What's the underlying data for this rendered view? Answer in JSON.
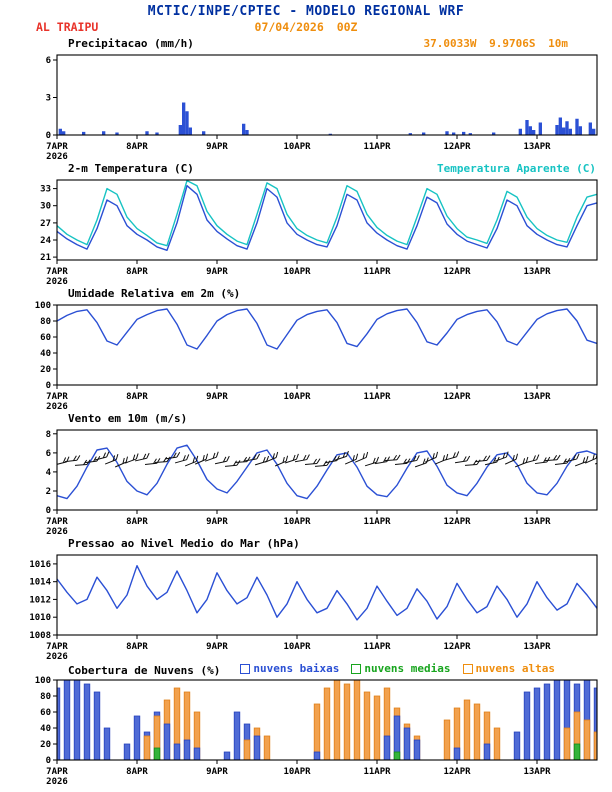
{
  "header": {
    "title": "MCTIC/INPE/CPTEC - MODELO REGIONAL WRF",
    "station": "AL TRAIPU",
    "run_datetime": "07/04/2026 00Z",
    "coordinates": "37.0033W 9.9706S 10m"
  },
  "colors": {
    "header_blue": "#0030a0",
    "station_red": "#e8332a",
    "orange": "#ef8e0e",
    "cyan": "#17c3c3",
    "line_blue": "#2b50d4",
    "green": "#18a51e",
    "black": "#000000"
  },
  "x_axis": {
    "range": [
      0,
      162
    ],
    "ticks": [
      {
        "h": 0,
        "label": "7APR",
        "year": "2026"
      },
      {
        "h": 24,
        "label": "8APR"
      },
      {
        "h": 48,
        "label": "9APR"
      },
      {
        "h": 72,
        "label": "10APR"
      },
      {
        "h": 96,
        "label": "11APR"
      },
      {
        "h": 120,
        "label": "12APR"
      },
      {
        "h": 144,
        "label": "13APR"
      }
    ]
  },
  "chart_data": [
    {
      "id": "precipitation",
      "title": "Precipitacao (mm/h)",
      "type": "bar-events",
      "unit": "mm/h",
      "ylim": [
        0,
        6.4
      ],
      "yticks": [
        0,
        3,
        6
      ],
      "color": "#2b50d4",
      "events": [
        [
          1,
          0.5
        ],
        [
          2,
          0.3
        ],
        [
          8,
          0.25
        ],
        [
          14,
          0.3
        ],
        [
          18,
          0.2
        ],
        [
          27,
          0.3
        ],
        [
          30,
          0.2
        ],
        [
          37,
          0.8
        ],
        [
          38,
          2.6
        ],
        [
          39,
          1.9
        ],
        [
          40,
          0.6
        ],
        [
          44,
          0.3
        ],
        [
          56,
          0.9
        ],
        [
          57,
          0.4
        ],
        [
          82,
          0.1
        ],
        [
          106,
          0.15
        ],
        [
          110,
          0.2
        ],
        [
          117,
          0.3
        ],
        [
          119,
          0.2
        ],
        [
          122,
          0.25
        ],
        [
          124,
          0.15
        ],
        [
          131,
          0.2
        ],
        [
          139,
          0.5
        ],
        [
          141,
          1.2
        ],
        [
          142,
          0.7
        ],
        [
          143,
          0.4
        ],
        [
          145,
          1.0
        ],
        [
          150,
          0.8
        ],
        [
          151,
          1.4
        ],
        [
          152,
          0.6
        ],
        [
          153,
          1.1
        ],
        [
          154,
          0.5
        ],
        [
          156,
          1.3
        ],
        [
          157,
          0.7
        ],
        [
          160,
          1.0
        ],
        [
          161,
          0.5
        ]
      ]
    },
    {
      "id": "temperature",
      "title": "2-m Temperatura (C)",
      "type": "line",
      "unit": "C",
      "ylim": [
        20.5,
        34.5
      ],
      "yticks": [
        21,
        24,
        27,
        30,
        33
      ],
      "series": [
        {
          "name": "2-m Temperatura (C)",
          "color": "#2b50d4",
          "start_h": 0,
          "step_h": 3,
          "values": [
            25.5,
            24.2,
            23.2,
            22.4,
            26.0,
            31.0,
            30.0,
            26.5,
            25.0,
            24.0,
            22.8,
            22.2,
            27.0,
            33.5,
            32.0,
            27.5,
            25.5,
            24.2,
            23.0,
            22.4,
            27.0,
            33.0,
            31.5,
            27.0,
            25.0,
            24.0,
            23.2,
            22.8,
            26.5,
            32.0,
            31.0,
            27.0,
            25.2,
            24.0,
            23.0,
            22.4,
            26.5,
            31.5,
            30.5,
            26.8,
            25.0,
            23.8,
            23.2,
            22.6,
            26.0,
            31.0,
            30.0,
            26.5,
            25.0,
            24.0,
            23.2,
            22.8,
            26.5,
            30.0,
            30.5
          ]
        },
        {
          "name": "Temperatura Aparente (C)",
          "color": "#17c3c3",
          "start_h": 0,
          "step_h": 3,
          "values": [
            26.5,
            25.0,
            24.0,
            23.2,
            27.5,
            33.0,
            32.0,
            28.0,
            26.0,
            24.8,
            23.5,
            23.0,
            28.5,
            34.4,
            33.5,
            29.0,
            26.5,
            25.0,
            23.8,
            23.2,
            28.5,
            34.0,
            33.0,
            28.5,
            26.0,
            24.8,
            24.0,
            23.5,
            28.0,
            33.5,
            32.5,
            28.5,
            26.2,
            24.8,
            23.8,
            23.2,
            28.0,
            33.0,
            32.0,
            28.2,
            26.0,
            24.5,
            24.0,
            23.4,
            27.5,
            32.5,
            31.5,
            28.0,
            26.0,
            24.8,
            24.0,
            23.6,
            28.0,
            31.5,
            32.0
          ]
        }
      ]
    },
    {
      "id": "humidity",
      "title": "Umidade Relativa em 2m (%)",
      "type": "line",
      "unit": "%",
      "ylim": [
        0,
        100
      ],
      "yticks": [
        0,
        20,
        40,
        60,
        80,
        100
      ],
      "series": [
        {
          "name": "Umidade Relativa em 2m",
          "color": "#2b50d4",
          "start_h": 0,
          "step_h": 3,
          "values": [
            80,
            87,
            92,
            94,
            78,
            55,
            50,
            66,
            82,
            88,
            93,
            95,
            76,
            50,
            45,
            62,
            80,
            88,
            93,
            95,
            77,
            50,
            45,
            63,
            81,
            88,
            92,
            94,
            78,
            52,
            48,
            64,
            82,
            89,
            93,
            95,
            78,
            54,
            50,
            65,
            82,
            88,
            92,
            94,
            79,
            55,
            50,
            66,
            82,
            89,
            93,
            95,
            80,
            56,
            52
          ]
        }
      ]
    },
    {
      "id": "wind",
      "title": "Vento em 10m (m/s)",
      "type": "line",
      "unit": "m/s",
      "ylim": [
        0,
        8.4
      ],
      "yticks": [
        0,
        2,
        4,
        6,
        8
      ],
      "series": [
        {
          "name": "Vento em 10m",
          "color": "#2b50d4",
          "start_h": 0,
          "step_h": 3,
          "values": [
            1.5,
            1.2,
            2.5,
            4.5,
            6.3,
            6.5,
            5.0,
            3.0,
            2.0,
            1.6,
            2.8,
            4.8,
            6.5,
            6.8,
            5.2,
            3.2,
            2.2,
            1.8,
            3.0,
            4.5,
            6.0,
            6.3,
            4.8,
            2.8,
            1.5,
            1.2,
            2.5,
            4.2,
            5.8,
            6.0,
            4.5,
            2.5,
            1.6,
            1.4,
            2.6,
            4.4,
            6.0,
            6.2,
            4.6,
            2.6,
            1.8,
            1.5,
            2.8,
            4.5,
            5.8,
            6.0,
            4.8,
            2.8,
            1.8,
            1.6,
            2.8,
            4.6,
            6.0,
            6.2,
            5.8
          ]
        }
      ],
      "barbs": {
        "step_h": 3,
        "color": "#101010",
        "y": [
          4.8,
          5.1,
          4.7,
          5.0,
          5.3,
          4.9,
          4.6,
          5.0,
          5.2,
          4.8,
          5.0,
          5.4,
          5.0,
          4.7,
          4.9,
          5.2,
          4.9,
          4.6,
          5.0,
          5.2,
          4.8,
          5.1,
          4.7,
          5.0,
          5.1,
          4.8,
          4.6,
          5.0,
          5.3,
          4.9,
          5.1,
          4.7,
          4.9,
          5.2,
          4.8,
          5.0,
          4.6,
          5.1,
          4.9,
          5.3,
          5.0,
          4.7,
          5.1,
          4.8,
          5.2,
          4.9,
          4.6,
          5.0,
          4.9,
          5.2,
          4.8,
          5.1,
          4.7,
          5.0,
          4.9
        ]
      }
    },
    {
      "id": "pressure",
      "title": "Pressao ao Nivel Medio do Mar (hPa)",
      "type": "line",
      "unit": "hPa",
      "ylim": [
        1008,
        1017
      ],
      "yticks": [
        1008,
        1010,
        1012,
        1014,
        1016
      ],
      "series": [
        {
          "name": "Pressao ao Nivel Medio do Mar",
          "color": "#2b50d4",
          "start_h": 0,
          "step_h": 3,
          "values": [
            1014.3,
            1012.8,
            1011.5,
            1012.0,
            1014.5,
            1013.0,
            1011.0,
            1012.5,
            1015.8,
            1013.5,
            1012.0,
            1012.8,
            1015.2,
            1013.0,
            1010.5,
            1012.0,
            1015.0,
            1013.0,
            1011.5,
            1012.2,
            1014.5,
            1012.5,
            1010.0,
            1011.5,
            1014.0,
            1012.0,
            1010.5,
            1011.0,
            1013.0,
            1011.5,
            1009.7,
            1011.0,
            1013.5,
            1011.8,
            1010.2,
            1011.0,
            1013.2,
            1011.8,
            1009.8,
            1011.2,
            1013.8,
            1012.0,
            1010.5,
            1011.2,
            1013.5,
            1012.0,
            1010.0,
            1011.5,
            1014.0,
            1012.2,
            1010.8,
            1011.5,
            1013.8,
            1012.5,
            1011.0
          ]
        }
      ]
    },
    {
      "id": "cloud_cover",
      "title": "Cobertura de Nuvens (%)",
      "type": "grouped-bars",
      "unit": "%",
      "ylim": [
        0,
        100
      ],
      "yticks": [
        0,
        20,
        40,
        60,
        80,
        100
      ],
      "step_h": 3,
      "series": [
        {
          "name": "nuvens baixas",
          "color": "#4f6bd6",
          "stroke": "#2643bd",
          "values": [
            90,
            100,
            100,
            95,
            85,
            40,
            0,
            20,
            55,
            35,
            60,
            45,
            20,
            25,
            15,
            0,
            0,
            10,
            60,
            45,
            30,
            0,
            0,
            0,
            0,
            0,
            10,
            0,
            0,
            0,
            0,
            0,
            0,
            30,
            55,
            40,
            25,
            0,
            0,
            0,
            15,
            0,
            0,
            20,
            0,
            0,
            35,
            85,
            90,
            95,
            100,
            100,
            95,
            100,
            90
          ]
        },
        {
          "name": "nuvens medias",
          "color": "#35b43a",
          "stroke": "#128a18",
          "values": [
            0,
            0,
            0,
            0,
            0,
            0,
            0,
            0,
            0,
            0,
            15,
            0,
            0,
            0,
            0,
            0,
            0,
            0,
            0,
            0,
            0,
            0,
            0,
            0,
            0,
            0,
            0,
            0,
            0,
            0,
            0,
            0,
            0,
            0,
            10,
            0,
            0,
            0,
            0,
            0,
            0,
            0,
            0,
            0,
            0,
            0,
            0,
            0,
            0,
            0,
            0,
            0,
            20,
            0,
            0
          ]
        },
        {
          "name": "nuvens altas",
          "color": "#f2a14d",
          "stroke": "#e07f1a",
          "values": [
            0,
            0,
            0,
            0,
            0,
            0,
            0,
            0,
            0,
            30,
            55,
            75,
            90,
            85,
            60,
            0,
            0,
            0,
            0,
            25,
            40,
            30,
            0,
            0,
            0,
            0,
            70,
            90,
            100,
            95,
            100,
            85,
            80,
            90,
            65,
            45,
            30,
            0,
            0,
            50,
            65,
            75,
            70,
            60,
            40,
            0,
            0,
            0,
            0,
            0,
            0,
            40,
            60,
            50,
            35
          ]
        }
      ]
    }
  ]
}
